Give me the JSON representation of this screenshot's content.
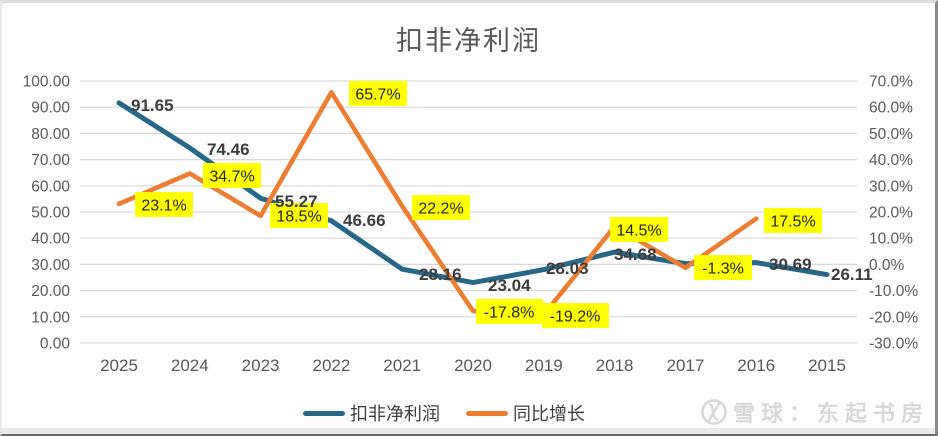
{
  "page": {
    "watermark_text": "雪球：东起书房"
  },
  "legend": {
    "items": [
      {
        "label": "扣非净利润",
        "color": "#26688A"
      },
      {
        "label": "同比增长",
        "color": "#ED7D31"
      }
    ]
  },
  "chart_data": {
    "type": "line",
    "title": "扣非净利润",
    "categories": [
      "2025",
      "2024",
      "2023",
      "2022",
      "2021",
      "2020",
      "2019",
      "2018",
      "2017",
      "2016",
      "2015"
    ],
    "series": [
      {
        "name": "扣非净利润",
        "axis": "left",
        "color": "#26688A",
        "values": [
          91.65,
          74.46,
          55.27,
          46.66,
          28.16,
          23.04,
          28.03,
          34.68,
          30.29,
          30.69,
          26.11
        ],
        "labels": [
          "91.65",
          "74.46",
          "55.27",
          "46.66",
          "28.16",
          "23.04",
          "28.03",
          "34.68",
          "",
          "30.69",
          "26.11"
        ],
        "label_color": "#3d3d3d"
      },
      {
        "name": "同比增长",
        "axis": "right",
        "color": "#ED7D31",
        "values": [
          23.1,
          34.7,
          18.5,
          65.7,
          22.2,
          -17.8,
          -19.2,
          14.5,
          -1.3,
          17.5,
          null
        ],
        "labels": [
          "23.1%",
          "34.7%",
          "18.5%",
          "65.7%",
          "22.2%",
          "-17.8%",
          "-19.2%",
          "14.5%",
          "-1.3%",
          "17.5%",
          ""
        ],
        "label_bg": "#FFFF00",
        "label_color": "#1f1f1f"
      }
    ],
    "left_axis": {
      "min": 0,
      "max": 100,
      "step": 10,
      "tick_labels": [
        "100.00",
        "90.00",
        "80.00",
        "70.00",
        "60.00",
        "50.00",
        "40.00",
        "30.00",
        "20.00",
        "10.00",
        "0.00"
      ]
    },
    "right_axis": {
      "min": -30,
      "max": 70,
      "step": 10,
      "tick_labels": [
        "70.0%",
        "60.0%",
        "50.0%",
        "40.0%",
        "30.0%",
        "20.0%",
        "10.0%",
        "0.0%",
        "-10.0%",
        "-20.0%",
        "-30.0%"
      ]
    },
    "grid": true,
    "gridline_color": "#D9D9D9",
    "axis_text_color": "#595959",
    "legend_position": "bottom"
  }
}
